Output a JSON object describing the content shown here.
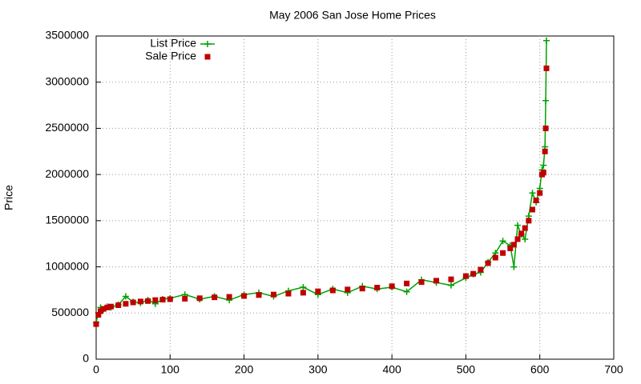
{
  "chart_data": {
    "type": "scatter",
    "title": "May 2006 San Jose Home Prices",
    "y_label": "Price",
    "x": [
      0,
      3,
      6,
      10,
      15,
      20,
      30,
      40,
      50,
      60,
      70,
      80,
      90,
      100,
      120,
      140,
      160,
      180,
      200,
      220,
      240,
      260,
      280,
      300,
      320,
      340,
      360,
      380,
      400,
      420,
      440,
      460,
      480,
      500,
      510,
      520,
      530,
      540,
      550,
      560,
      565,
      570,
      575,
      580,
      585,
      590,
      595,
      600,
      603,
      605,
      607,
      608,
      609
    ],
    "series": [
      {
        "name": "List Price",
        "color": "#00a000",
        "style": "linespoints",
        "values": [
          400000,
          500000,
          560000,
          540000,
          570000,
          560000,
          590000,
          680000,
          620000,
          610000,
          640000,
          600000,
          650000,
          660000,
          700000,
          650000,
          680000,
          640000,
          700000,
          720000,
          680000,
          740000,
          780000,
          700000,
          760000,
          720000,
          790000,
          760000,
          780000,
          730000,
          860000,
          830000,
          800000,
          880000,
          920000,
          940000,
          1050000,
          1150000,
          1280000,
          1230000,
          1000000,
          1450000,
          1350000,
          1300000,
          1550000,
          1800000,
          1700000,
          1850000,
          2050000,
          2100000,
          2300000,
          2800000,
          3450000
        ]
      },
      {
        "name": "Sale Price",
        "color": "#c00000",
        "style": "points",
        "values": [
          380000,
          480000,
          520000,
          545000,
          560000,
          570000,
          585000,
          600000,
          615000,
          625000,
          630000,
          640000,
          645000,
          650000,
          655000,
          660000,
          670000,
          675000,
          685000,
          695000,
          700000,
          710000,
          720000,
          735000,
          745000,
          755000,
          765000,
          775000,
          790000,
          820000,
          835000,
          850000,
          865000,
          900000,
          925000,
          970000,
          1040000,
          1100000,
          1150000,
          1200000,
          1240000,
          1300000,
          1360000,
          1420000,
          1500000,
          1620000,
          1720000,
          1800000,
          2000000,
          2020000,
          2250000,
          2500000,
          3150000
        ]
      }
    ],
    "xlim": [
      0,
      700
    ],
    "xticks": [
      0,
      100,
      200,
      300,
      400,
      500,
      600,
      700
    ],
    "ylim": [
      0,
      3500000
    ],
    "yticks": [
      0,
      500000,
      1000000,
      1500000,
      2000000,
      2500000,
      3000000,
      3500000
    ],
    "grid": true,
    "legend": "top-left"
  }
}
